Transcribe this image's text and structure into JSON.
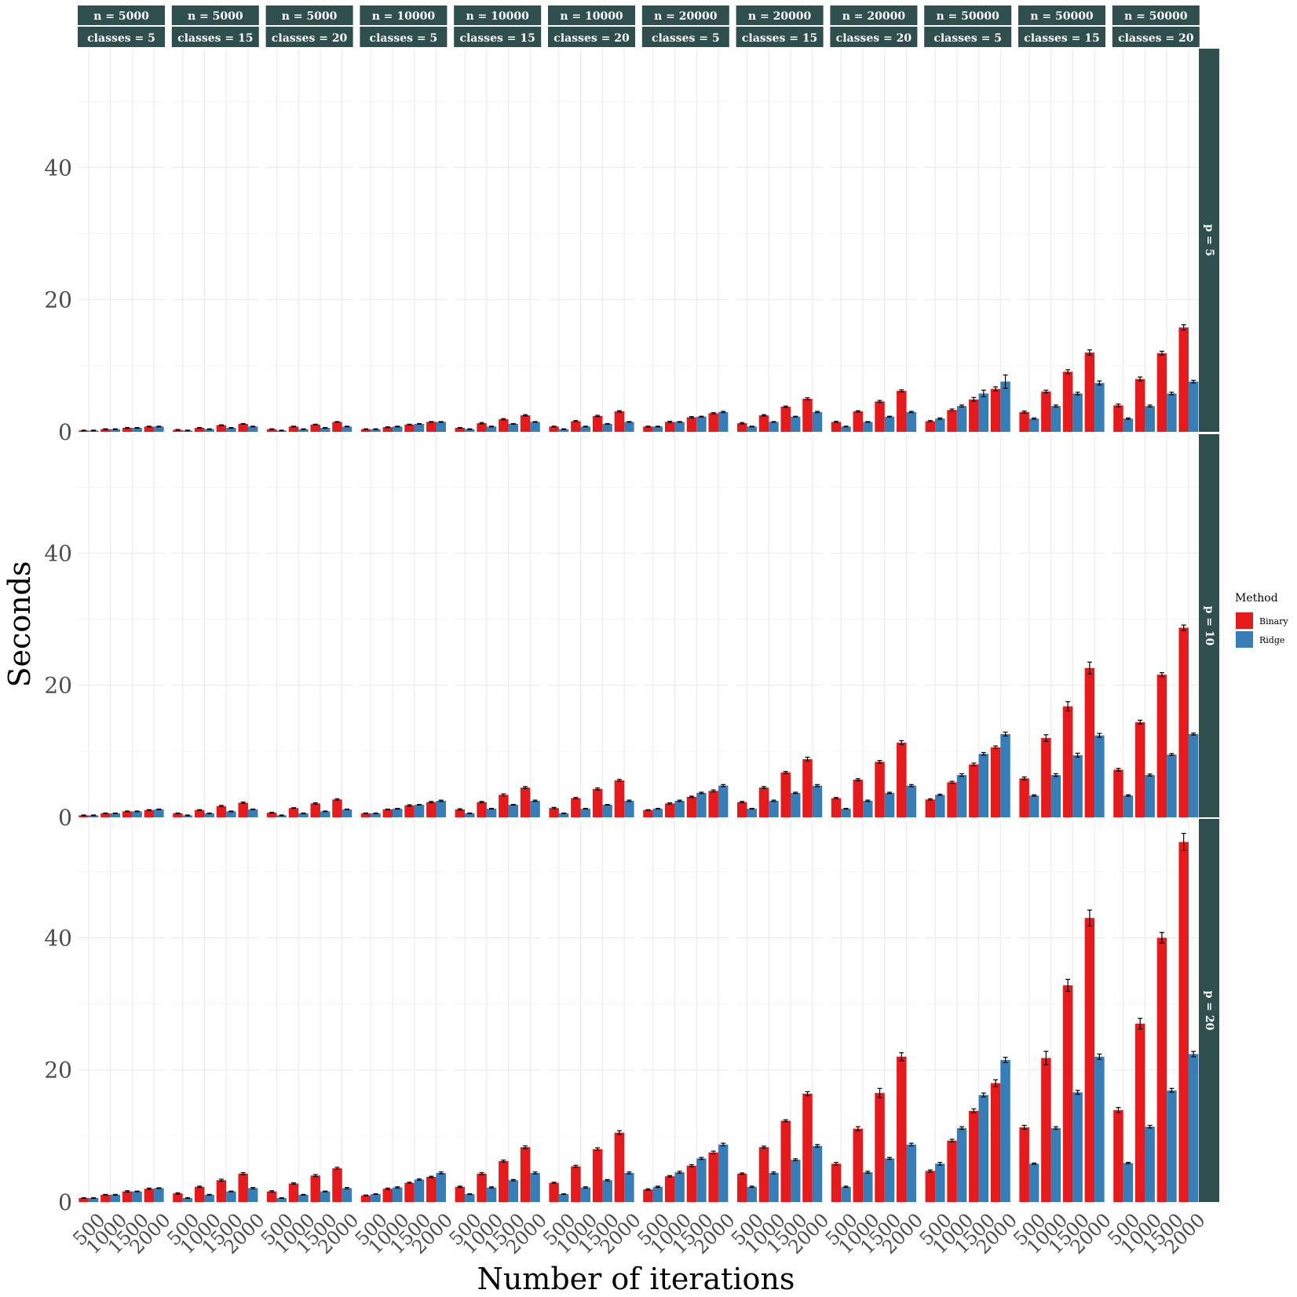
{
  "chart_data": {
    "type": "bar",
    "xlabel": "Number of iterations",
    "ylabel": "Seconds",
    "x_categories": [
      "500",
      "1000",
      "1500",
      "2000"
    ],
    "ylim": [
      0,
      58
    ],
    "y_ticks": [
      0,
      20,
      40
    ],
    "y_tick_labels": [
      "0",
      "20",
      "40"
    ],
    "legend": {
      "title": "Method",
      "placement": "right",
      "entries": [
        {
          "name": "Binary",
          "color": "#e41a1c"
        },
        {
          "name": "Ridge",
          "color": "#377eb8"
        }
      ]
    },
    "columns": [
      {
        "n_label": "n = 5000",
        "classes_label": "classes = 5"
      },
      {
        "n_label": "n = 5000",
        "classes_label": "classes = 15"
      },
      {
        "n_label": "n = 5000",
        "classes_label": "classes = 20"
      },
      {
        "n_label": "n = 10000",
        "classes_label": "classes = 5"
      },
      {
        "n_label": "n = 10000",
        "classes_label": "classes = 15"
      },
      {
        "n_label": "n = 10000",
        "classes_label": "classes = 20"
      },
      {
        "n_label": "n = 20000",
        "classes_label": "classes = 5"
      },
      {
        "n_label": "n = 20000",
        "classes_label": "classes = 15"
      },
      {
        "n_label": "n = 20000",
        "classes_label": "classes = 20"
      },
      {
        "n_label": "n = 50000",
        "classes_label": "classes = 5"
      },
      {
        "n_label": "n = 50000",
        "classes_label": "classes = 15"
      },
      {
        "n_label": "n = 50000",
        "classes_label": "classes = 20"
      }
    ],
    "rows": [
      {
        "label": "p = 5",
        "binary": [
          [
            0.2,
            0.4,
            0.6,
            0.8
          ],
          [
            0.3,
            0.6,
            1.0,
            1.2
          ],
          [
            0.4,
            0.8,
            1.1,
            1.5
          ],
          [
            0.4,
            0.7,
            1.1,
            1.5
          ],
          [
            0.6,
            1.3,
            1.9,
            2.5
          ],
          [
            0.8,
            1.6,
            2.4,
            3.1
          ],
          [
            0.8,
            1.5,
            2.2,
            2.8
          ],
          [
            1.3,
            2.5,
            3.8,
            5.0
          ],
          [
            1.5,
            3.1,
            4.6,
            6.2
          ],
          [
            1.6,
            3.3,
            4.9,
            6.5
          ],
          [
            3.0,
            6.1,
            9.1,
            12.0
          ],
          [
            4.0,
            8.0,
            11.9,
            15.8
          ]
        ],
        "ridge": [
          [
            0.2,
            0.4,
            0.6,
            0.8
          ],
          [
            0.2,
            0.4,
            0.6,
            0.8
          ],
          [
            0.2,
            0.4,
            0.6,
            0.8
          ],
          [
            0.4,
            0.8,
            1.2,
            1.5
          ],
          [
            0.4,
            0.8,
            1.2,
            1.5
          ],
          [
            0.4,
            0.8,
            1.2,
            1.5
          ],
          [
            0.8,
            1.5,
            2.3,
            3.0
          ],
          [
            0.8,
            1.5,
            2.3,
            3.0
          ],
          [
            0.8,
            1.5,
            2.3,
            3.0
          ],
          [
            2.0,
            3.9,
            5.8,
            7.6
          ],
          [
            2.0,
            3.9,
            5.8,
            7.4
          ],
          [
            2.0,
            3.9,
            5.8,
            7.6
          ]
        ],
        "binary_err": [
          [
            0.05,
            0.05,
            0.05,
            0.05
          ],
          [
            0.05,
            0.05,
            0.05,
            0.05
          ],
          [
            0.05,
            0.05,
            0.05,
            0.05
          ],
          [
            0.05,
            0.05,
            0.05,
            0.05
          ],
          [
            0.05,
            0.1,
            0.1,
            0.1
          ],
          [
            0.05,
            0.1,
            0.1,
            0.1
          ],
          [
            0.05,
            0.1,
            0.1,
            0.1
          ],
          [
            0.1,
            0.1,
            0.1,
            0.15
          ],
          [
            0.1,
            0.1,
            0.15,
            0.15
          ],
          [
            0.1,
            0.15,
            0.3,
            0.3
          ],
          [
            0.15,
            0.2,
            0.3,
            0.4
          ],
          [
            0.2,
            0.3,
            0.3,
            0.4
          ]
        ],
        "ridge_err": [
          [
            0.05,
            0.05,
            0.05,
            0.05
          ],
          [
            0.05,
            0.05,
            0.05,
            0.05
          ],
          [
            0.05,
            0.05,
            0.05,
            0.05
          ],
          [
            0.05,
            0.05,
            0.05,
            0.05
          ],
          [
            0.05,
            0.05,
            0.05,
            0.05
          ],
          [
            0.05,
            0.05,
            0.05,
            0.05
          ],
          [
            0.05,
            0.05,
            0.05,
            0.1
          ],
          [
            0.05,
            0.05,
            0.05,
            0.1
          ],
          [
            0.05,
            0.05,
            0.05,
            0.1
          ],
          [
            0.1,
            0.15,
            0.5,
            1.0
          ],
          [
            0.1,
            0.15,
            0.2,
            0.3
          ],
          [
            0.1,
            0.15,
            0.2,
            0.2
          ]
        ]
      },
      {
        "label": "p = 10",
        "binary": [
          [
            0.3,
            0.6,
            0.9,
            1.1
          ],
          [
            0.6,
            1.1,
            1.7,
            2.2
          ],
          [
            0.7,
            1.4,
            2.1,
            2.7
          ],
          [
            0.6,
            1.2,
            1.8,
            2.3
          ],
          [
            1.2,
            2.3,
            3.4,
            4.5
          ],
          [
            1.4,
            2.9,
            4.3,
            5.6
          ],
          [
            1.1,
            2.1,
            3.1,
            4.0
          ],
          [
            2.3,
            4.5,
            6.8,
            8.8
          ],
          [
            2.9,
            5.7,
            8.4,
            11.3
          ],
          [
            2.7,
            5.3,
            8.0,
            10.6
          ],
          [
            5.9,
            12.0,
            16.8,
            22.6
          ],
          [
            7.2,
            14.4,
            21.6,
            28.7
          ]
        ],
        "ridge": [
          [
            0.3,
            0.6,
            0.9,
            1.2
          ],
          [
            0.3,
            0.6,
            0.9,
            1.2
          ],
          [
            0.3,
            0.6,
            0.9,
            1.2
          ],
          [
            0.6,
            1.3,
            1.9,
            2.5
          ],
          [
            0.6,
            1.3,
            1.9,
            2.5
          ],
          [
            0.6,
            1.3,
            1.9,
            2.5
          ],
          [
            1.3,
            2.5,
            3.7,
            4.8
          ],
          [
            1.3,
            2.5,
            3.7,
            4.8
          ],
          [
            1.3,
            2.5,
            3.7,
            4.8
          ],
          [
            3.4,
            6.4,
            9.6,
            12.6
          ],
          [
            3.3,
            6.4,
            9.4,
            12.4
          ],
          [
            3.3,
            6.4,
            9.5,
            12.6
          ]
        ],
        "binary_err": [
          [
            0.05,
            0.05,
            0.05,
            0.05
          ],
          [
            0.05,
            0.05,
            0.1,
            0.1
          ],
          [
            0.05,
            0.05,
            0.1,
            0.1
          ],
          [
            0.05,
            0.05,
            0.1,
            0.1
          ],
          [
            0.1,
            0.1,
            0.15,
            0.15
          ],
          [
            0.1,
            0.1,
            0.15,
            0.15
          ],
          [
            0.05,
            0.1,
            0.1,
            0.15
          ],
          [
            0.1,
            0.15,
            0.15,
            0.3
          ],
          [
            0.1,
            0.15,
            0.2,
            0.3
          ],
          [
            0.1,
            0.15,
            0.2,
            0.2
          ],
          [
            0.2,
            0.5,
            0.7,
            0.9
          ],
          [
            0.2,
            0.3,
            0.3,
            0.4
          ]
        ],
        "ridge_err": [
          [
            0.05,
            0.05,
            0.05,
            0.05
          ],
          [
            0.05,
            0.05,
            0.05,
            0.05
          ],
          [
            0.05,
            0.05,
            0.05,
            0.05
          ],
          [
            0.05,
            0.05,
            0.05,
            0.1
          ],
          [
            0.05,
            0.05,
            0.05,
            0.1
          ],
          [
            0.05,
            0.05,
            0.05,
            0.1
          ],
          [
            0.05,
            0.1,
            0.1,
            0.15
          ],
          [
            0.05,
            0.1,
            0.1,
            0.15
          ],
          [
            0.05,
            0.1,
            0.1,
            0.15
          ],
          [
            0.1,
            0.2,
            0.2,
            0.3
          ],
          [
            0.1,
            0.2,
            0.3,
            0.3
          ],
          [
            0.1,
            0.15,
            0.15,
            0.15
          ]
        ]
      },
      {
        "label": "p = 20",
        "binary": [
          [
            0.6,
            1.1,
            1.6,
            2.0
          ],
          [
            1.3,
            2.3,
            3.3,
            4.3
          ],
          [
            1.6,
            2.8,
            4.0,
            5.1
          ],
          [
            1.0,
            2.0,
            2.9,
            3.8
          ],
          [
            2.3,
            4.3,
            6.2,
            8.3
          ],
          [
            2.9,
            5.4,
            8.0,
            10.5
          ],
          [
            1.9,
            3.9,
            5.5,
            7.5
          ],
          [
            4.3,
            8.3,
            12.3,
            16.4
          ],
          [
            5.8,
            11.1,
            16.5,
            22.0
          ],
          [
            4.7,
            9.3,
            13.8,
            18.0
          ],
          [
            11.3,
            21.8,
            32.8,
            43.0
          ],
          [
            13.9,
            27.0,
            40.0,
            54.5
          ]
        ],
        "ridge": [
          [
            0.6,
            1.1,
            1.6,
            2.1
          ],
          [
            0.6,
            1.1,
            1.6,
            2.1
          ],
          [
            0.6,
            1.1,
            1.6,
            2.1
          ],
          [
            1.2,
            2.2,
            3.4,
            4.4
          ],
          [
            1.2,
            2.2,
            3.3,
            4.4
          ],
          [
            1.2,
            2.2,
            3.3,
            4.4
          ],
          [
            2.3,
            4.5,
            6.6,
            8.7
          ],
          [
            2.3,
            4.4,
            6.4,
            8.5
          ],
          [
            2.3,
            4.5,
            6.6,
            8.7
          ],
          [
            5.8,
            11.2,
            16.2,
            21.5
          ],
          [
            5.8,
            11.2,
            16.6,
            22.0
          ],
          [
            5.9,
            11.4,
            16.9,
            22.4
          ]
        ],
        "binary_err": [
          [
            0.05,
            0.05,
            0.1,
            0.1
          ],
          [
            0.1,
            0.1,
            0.15,
            0.15
          ],
          [
            0.1,
            0.1,
            0.15,
            0.15
          ],
          [
            0.05,
            0.1,
            0.1,
            0.1
          ],
          [
            0.1,
            0.15,
            0.15,
            0.2
          ],
          [
            0.1,
            0.15,
            0.2,
            0.3
          ],
          [
            0.1,
            0.1,
            0.15,
            0.2
          ],
          [
            0.1,
            0.15,
            0.15,
            0.3
          ],
          [
            0.2,
            0.3,
            0.7,
            0.6
          ],
          [
            0.15,
            0.2,
            0.3,
            0.5
          ],
          [
            0.3,
            1.0,
            0.9,
            1.2
          ],
          [
            0.4,
            0.8,
            0.8,
            1.3
          ]
        ],
        "ridge_err": [
          [
            0.05,
            0.05,
            0.05,
            0.05
          ],
          [
            0.05,
            0.05,
            0.05,
            0.1
          ],
          [
            0.05,
            0.05,
            0.05,
            0.1
          ],
          [
            0.05,
            0.1,
            0.1,
            0.15
          ],
          [
            0.05,
            0.1,
            0.1,
            0.15
          ],
          [
            0.05,
            0.1,
            0.1,
            0.15
          ],
          [
            0.1,
            0.15,
            0.15,
            0.2
          ],
          [
            0.1,
            0.15,
            0.15,
            0.2
          ],
          [
            0.1,
            0.15,
            0.15,
            0.2
          ],
          [
            0.2,
            0.2,
            0.3,
            0.4
          ],
          [
            0.1,
            0.2,
            0.3,
            0.4
          ],
          [
            0.1,
            0.2,
            0.3,
            0.4
          ]
        ]
      }
    ]
  }
}
